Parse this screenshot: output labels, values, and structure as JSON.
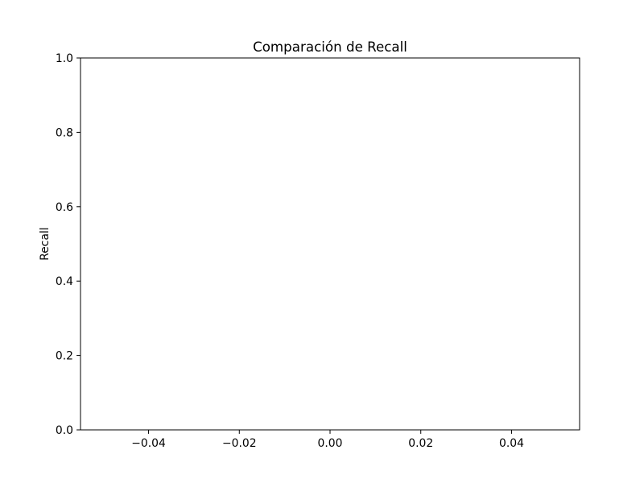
{
  "chart_data": {
    "type": "bar",
    "title": "Comparación de Recall",
    "xlabel": "",
    "ylabel": "Recall",
    "categories": [],
    "values": [],
    "xlim": [
      -0.055,
      0.055
    ],
    "ylim": [
      0.0,
      1.0
    ],
    "x_ticks": [
      -0.04,
      -0.02,
      0.0,
      0.02,
      0.04
    ],
    "x_tick_labels": [
      "−0.04",
      "−0.02",
      "0.00",
      "0.02",
      "0.04"
    ],
    "y_ticks": [
      0.0,
      0.2,
      0.4,
      0.6,
      0.8,
      1.0
    ],
    "y_tick_labels": [
      "0.0",
      "0.2",
      "0.4",
      "0.6",
      "0.8",
      "1.0"
    ],
    "grid": false,
    "legend": "none"
  },
  "colors": {
    "background": "#ffffff",
    "axes": "#000000",
    "text": "#000000"
  }
}
